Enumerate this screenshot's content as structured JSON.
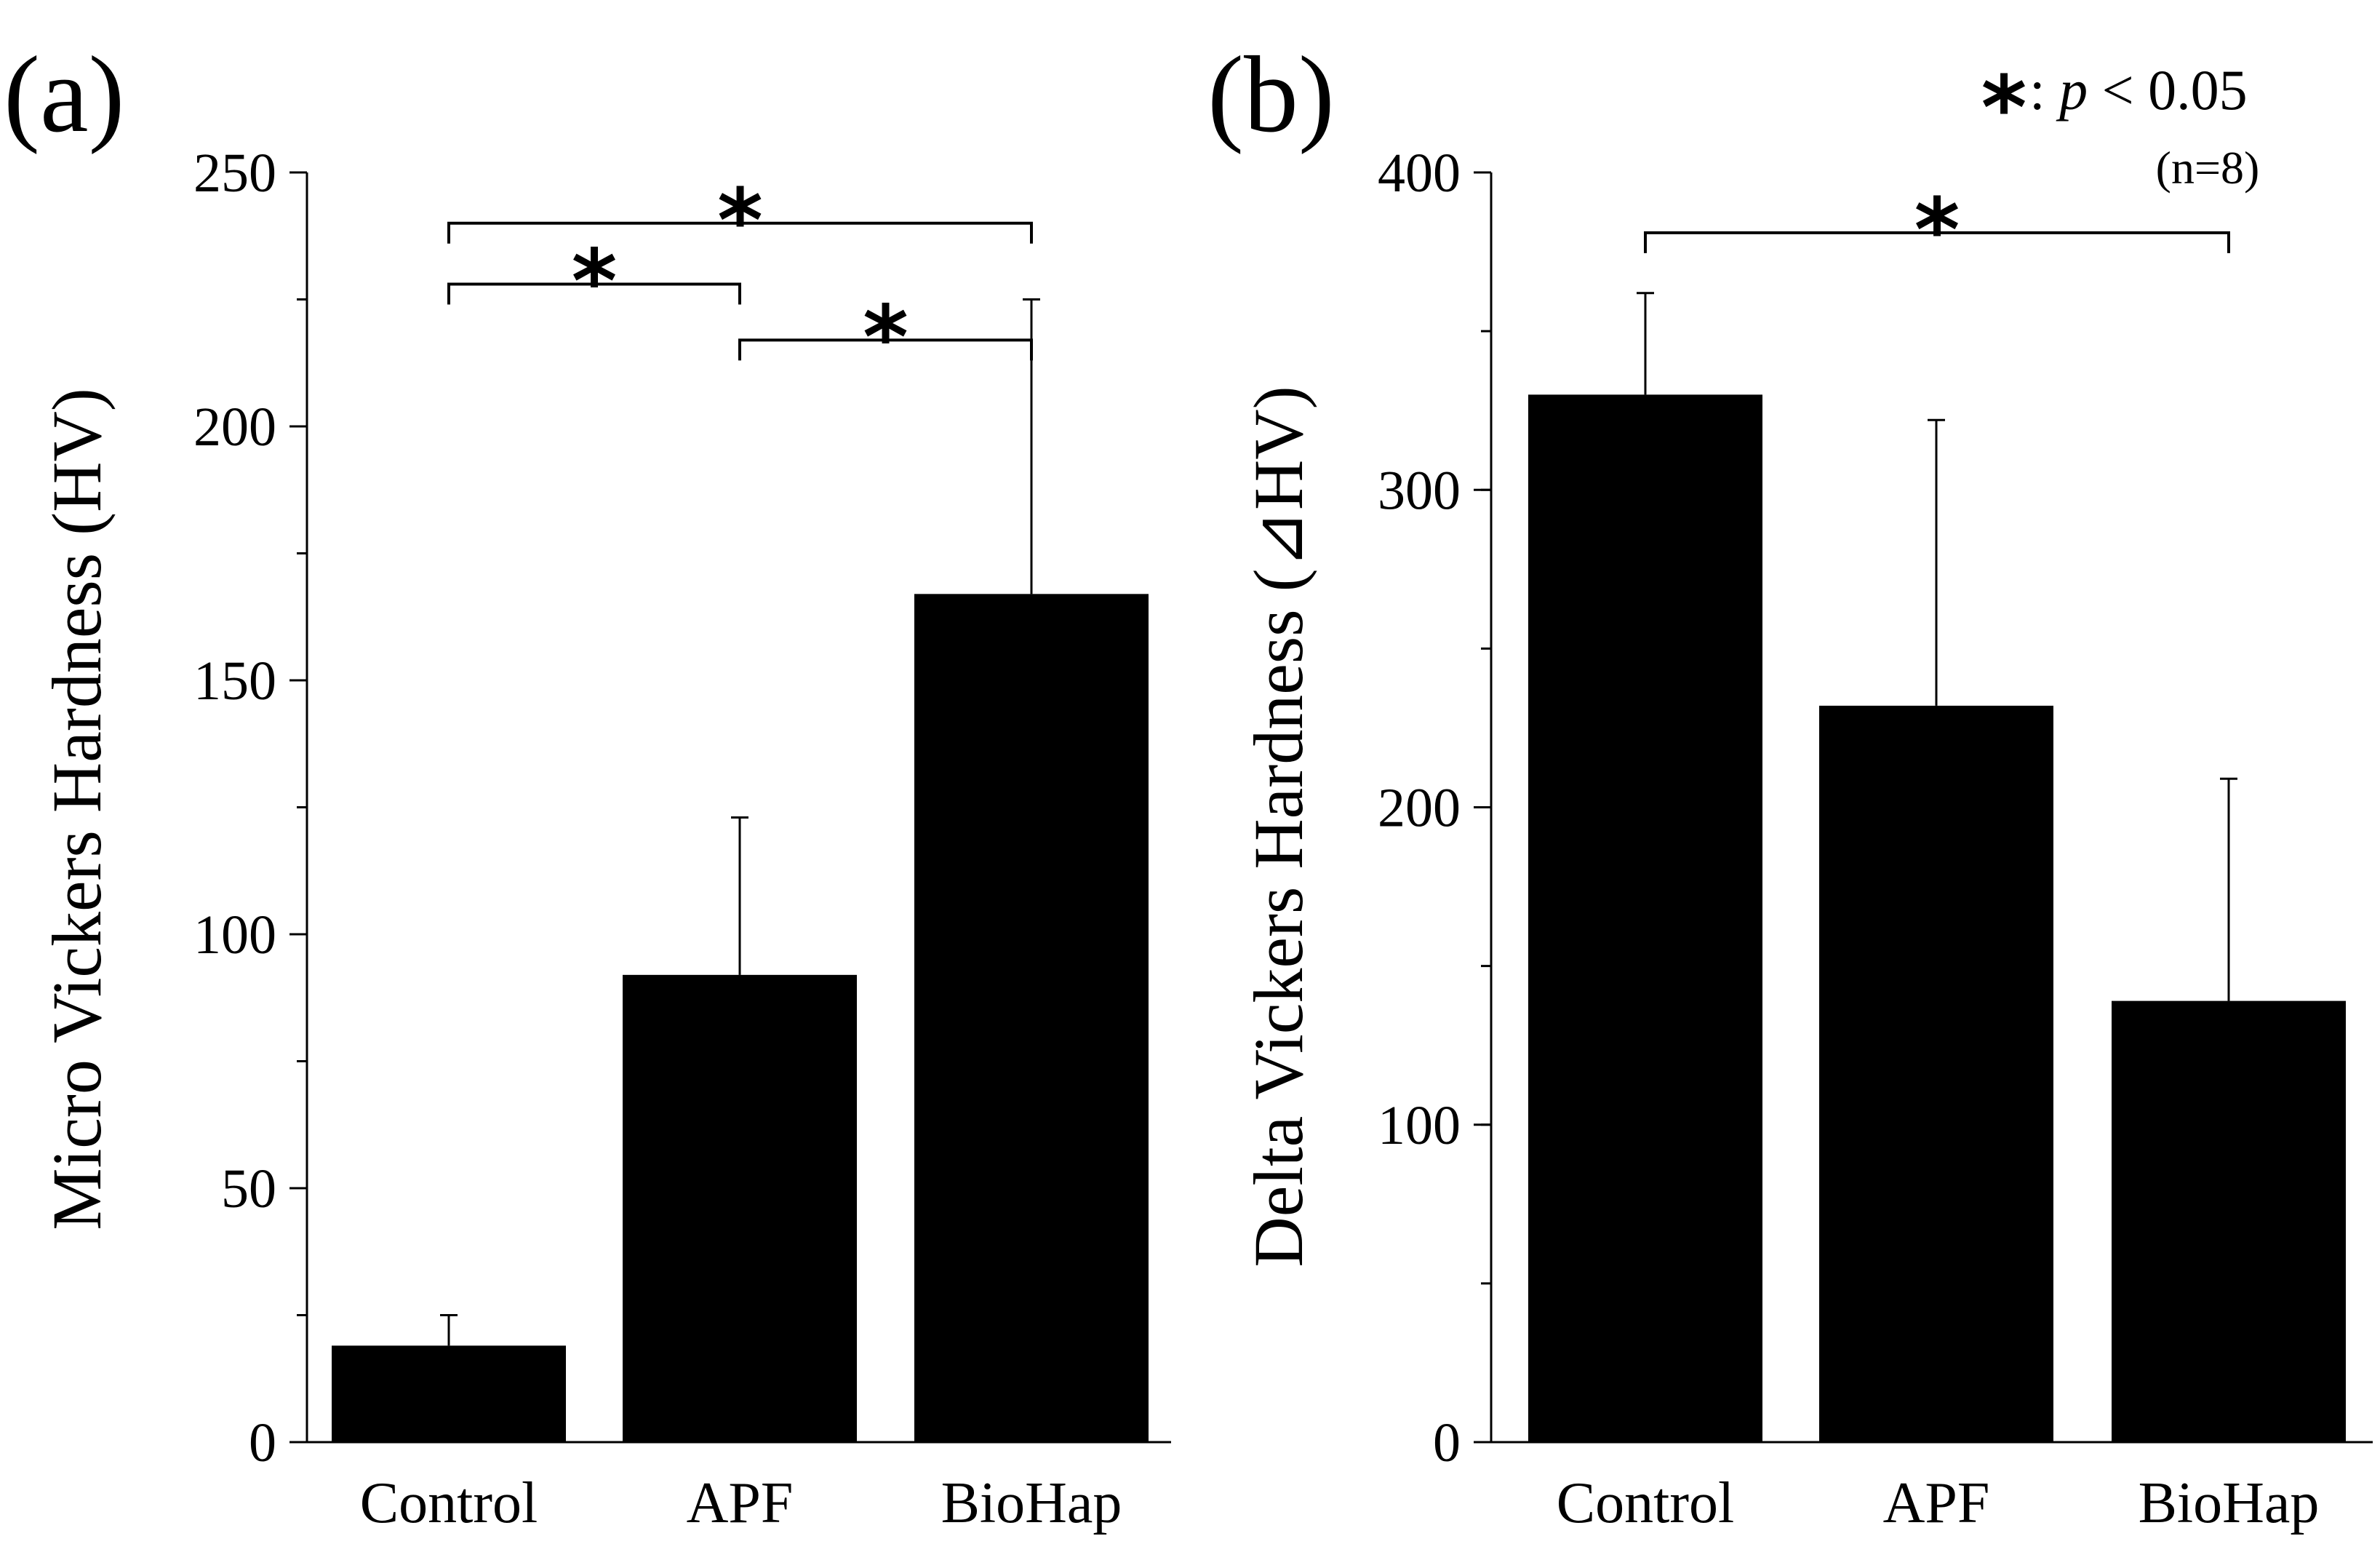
{
  "legend": {
    "star": "*",
    "text_prefix": ": ",
    "p_symbol": "p",
    "text_suffix": " < 0.05",
    "n": "(n=8)"
  },
  "colors": {
    "bar": "#000000",
    "axis": "#000000",
    "background": "#ffffff"
  },
  "chart_data": [
    {
      "panel": "(a)",
      "type": "bar",
      "categories": [
        "Control",
        "APF",
        "BioHap"
      ],
      "values": [
        19,
        92,
        167
      ],
      "errors": [
        6,
        31,
        58
      ],
      "ylabel": "Micro Vickers Hardness (HV)",
      "xlabel": "",
      "ylim": [
        0,
        250
      ],
      "yticks": [
        0,
        50,
        100,
        150,
        200,
        250
      ],
      "tick_labels": [
        "0",
        "50",
        "100",
        "150",
        "200",
        "250"
      ],
      "minor_tick_step": 25,
      "significance": [
        {
          "from": 0,
          "to": 2,
          "level": 240,
          "label": "*"
        },
        {
          "from": 0,
          "to": 1,
          "level": 228,
          "label": "*"
        },
        {
          "from": 1,
          "to": 2,
          "level": 217,
          "label": "*"
        }
      ]
    },
    {
      "panel": "(b)",
      "type": "bar",
      "categories": [
        "Control",
        "APF",
        "BioHap"
      ],
      "values": [
        330,
        232,
        139
      ],
      "errors": [
        32,
        90,
        70
      ],
      "ylabel": "Delta Vickers Hardness (⊿HV)",
      "xlabel": "",
      "ylim": [
        0,
        400
      ],
      "yticks": [
        0,
        100,
        200,
        300,
        400
      ],
      "tick_labels": [
        "0",
        "100",
        "200",
        "300",
        "400"
      ],
      "minor_tick_step": 50,
      "significance": [
        {
          "from": 0,
          "to": 2,
          "level": 381,
          "label": "*"
        }
      ]
    }
  ]
}
